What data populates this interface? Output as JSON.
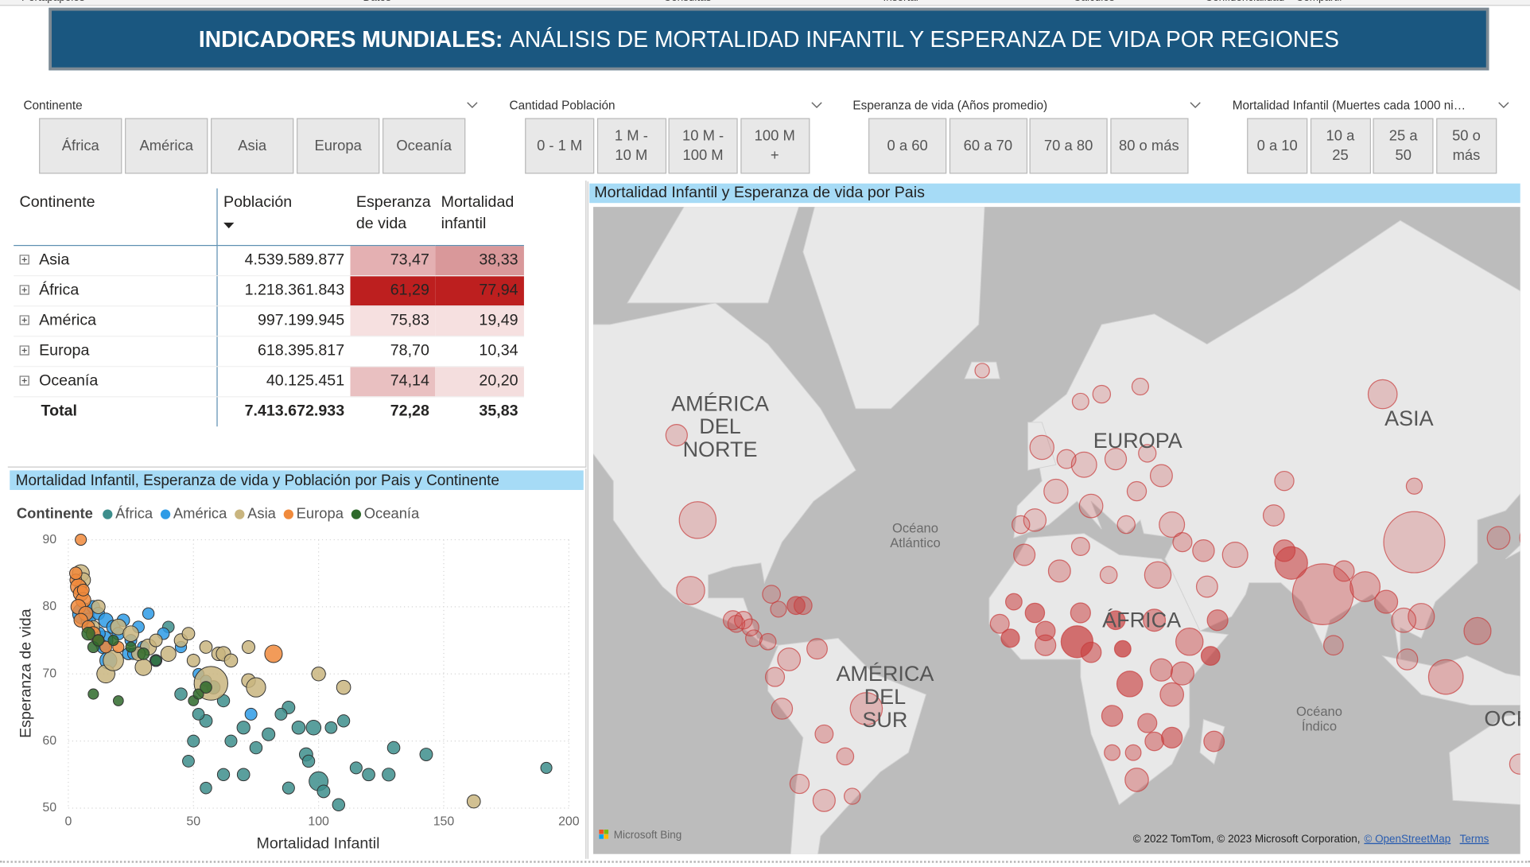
{
  "ribbon_groups": [
    "Portapapeles",
    "Datos",
    "Consultas",
    "Insertar",
    "Cálculos",
    "Confidencialidad",
    "Compartir"
  ],
  "header": {
    "title_bold": "INDICADORES MUNDIALES:",
    "title_rest": "ANÁLISIS DE MORTALIDAD INFANTIL Y ESPERANZA DE VIDA POR REGIONES"
  },
  "slicers": [
    {
      "title": "Continente",
      "options": [
        "África",
        "América",
        "Asia",
        "Europa",
        "Oceanía"
      ]
    },
    {
      "title": "Cantidad Población",
      "options": [
        "0 - 1 M",
        "1 M - 10 M",
        "10 M - 100 M",
        "100 M +"
      ]
    },
    {
      "title": "Esperanza de vida (Años promedio)",
      "options": [
        "0 a 60",
        "60 a 70",
        "70 a 80",
        "80 o más"
      ]
    },
    {
      "title": "Mortalidad Infantil (Muertes cada 1000 ni…",
      "options": [
        "0 a 10",
        "10 a 25",
        "25 a 50",
        "50 o más"
      ]
    }
  ],
  "table": {
    "headers": [
      "Continente",
      "Población",
      "Esperanza de vida",
      "Mortalidad infantil"
    ],
    "rows": [
      {
        "name": "Asia",
        "population": "4.539.589.877",
        "life": "73,47",
        "mort": "38,33",
        "life_color": "#e4b0b2",
        "mort_color": "#d9989a"
      },
      {
        "name": "África",
        "population": "1.218.361.843",
        "life": "61,29",
        "mort": "77,94",
        "life_color": "#bd1f1f",
        "mort_color": "#bd1f1f"
      },
      {
        "name": "América",
        "population": "997.199.945",
        "life": "75,83",
        "mort": "19,49",
        "life_color": "#f6e0e0",
        "mort_color": "#f6e0e0"
      },
      {
        "name": "Europa",
        "population": "618.395.817",
        "life": "78,70",
        "mort": "10,34",
        "life_color": "#ffffff",
        "mort_color": "#ffffff"
      },
      {
        "name": "Oceanía",
        "population": "40.125.451",
        "life": "74,14",
        "mort": "20,20",
        "life_color": "#e9c0c1",
        "mort_color": "#f4dede"
      }
    ],
    "total": {
      "name": "Total",
      "population": "7.413.672.933",
      "life": "72,28",
      "mort": "35,83"
    }
  },
  "scatter": {
    "type": "scatter",
    "title": "Mortalidad Infantil, Esperanza de vida y Población por Pais y Continente",
    "legend_title": "Continente",
    "x_label": "Mortalidad Infantil",
    "y_label": "Esperanza de vida",
    "xlim": [
      0,
      200
    ],
    "xticks": [
      0,
      50,
      100,
      150,
      200
    ],
    "ylim": [
      50,
      90
    ],
    "yticks": [
      50,
      60,
      70,
      80,
      90
    ],
    "grid": true,
    "series": [
      {
        "name": "África",
        "color": "#3d8e8c",
        "x": [
          58,
          62,
          55,
          50,
          48,
          55,
          62,
          70,
          70,
          75,
          80,
          88,
          92,
          98,
          100,
          95,
          102,
          108,
          115,
          120,
          128,
          130,
          143,
          191,
          110,
          105,
          40,
          65,
          88,
          96,
          85,
          45,
          52
        ],
        "y": [
          68,
          66,
          63,
          60,
          57,
          53,
          55,
          55,
          62,
          59,
          61,
          53,
          62,
          62,
          54,
          58,
          52.5,
          50.5,
          56,
          55,
          55,
          59,
          58,
          56,
          63,
          62,
          77,
          60,
          65,
          57,
          64,
          67,
          64
        ],
        "size": [
          30,
          15,
          20,
          12,
          10,
          8,
          14,
          18,
          25,
          16,
          22,
          12,
          28,
          60,
          206,
          31,
          20,
          16,
          12,
          18,
          24,
          17,
          20,
          5,
          14,
          10,
          8,
          12,
          20,
          15,
          11,
          16,
          9
        ]
      },
      {
        "name": "América",
        "color": "#2e9be6",
        "x": [
          6,
          8,
          10,
          12,
          14,
          15,
          18,
          20,
          22,
          25,
          28,
          30,
          32,
          14,
          24,
          35,
          45,
          38,
          52,
          55,
          73,
          16,
          12,
          26
        ],
        "y": [
          79,
          78,
          80,
          79,
          75,
          78,
          77,
          76,
          78,
          75,
          77,
          74,
          79,
          74,
          73,
          72,
          74,
          76,
          70,
          69,
          64,
          72,
          76,
          73
        ],
        "size": [
          331,
          45,
          20,
          19,
          212,
          51,
          33,
          18,
          18,
          11,
          10,
          12,
          7,
          28,
          11,
          12,
          6,
          10,
          4,
          3,
          11,
          129,
          38,
          7
        ]
      },
      {
        "name": "Asia",
        "color": "#c9b57f",
        "x": [
          5,
          6,
          5,
          12,
          20,
          25,
          32,
          40,
          45,
          50,
          55,
          60,
          62,
          65,
          72,
          72,
          75,
          100,
          110,
          162,
          15,
          30,
          57,
          10,
          18,
          28,
          35,
          48
        ],
        "y": [
          85,
          84,
          83,
          80,
          77,
          76,
          74,
          73,
          75,
          72,
          74,
          73,
          73,
          72,
          74,
          69,
          68,
          70,
          68,
          51,
          70,
          71,
          68.6,
          77,
          72,
          73,
          75,
          76
        ],
        "size": [
          126,
          51,
          10,
          35,
          84,
          84,
          97,
          70,
          30,
          20,
          18,
          34,
          54,
          29,
          21,
          39,
          220,
          40,
          44,
          30,
          165,
          110,
          1380,
          20,
          273,
          33,
          21,
          19
        ]
      },
      {
        "name": "Europa",
        "color": "#f08a3c",
        "x": [
          5,
          3,
          4,
          5,
          6,
          4,
          7,
          5,
          8,
          10,
          12,
          15,
          20,
          82,
          3,
          6
        ],
        "y": [
          90,
          84,
          83,
          82,
          81,
          80,
          79,
          78,
          77,
          76,
          75,
          74,
          74,
          73,
          85,
          82.5
        ],
        "size": [
          5,
          10,
          83,
          67,
          67,
          60,
          47,
          38,
          19,
          44,
          10,
          9,
          5,
          146,
          17,
          10
        ]
      },
      {
        "name": "Oceanía",
        "color": "#2f6a2c",
        "x": [
          8,
          10,
          12,
          18,
          30,
          35,
          10,
          20,
          50,
          52,
          55,
          25
        ],
        "y": [
          76,
          74,
          75,
          75,
          73,
          72,
          67,
          66,
          66,
          67,
          68,
          74
        ],
        "size": [
          25,
          5,
          4,
          1,
          9,
          1,
          1,
          0.3,
          0.5,
          0.8,
          9,
          0.9
        ]
      }
    ]
  },
  "map": {
    "title": "Mortalidad Infantil y Esperanza de vida por Pais",
    "labels": [
      {
        "lines": [
          "AMÉRICA",
          "DEL",
          "NORTE"
        ]
      },
      {
        "lines": [
          "AMÉRICA",
          "DEL",
          "SUR"
        ]
      },
      {
        "lines": [
          "EUROPA"
        ]
      },
      {
        "lines": [
          "ÁFRICA"
        ]
      },
      {
        "lines": [
          "ASIA"
        ]
      },
      {
        "lines": [
          "OCE"
        ]
      },
      {
        "lines": [
          "Océano",
          "Atlántico"
        ]
      },
      {
        "lines": [
          "Océano",
          "Índico"
        ]
      }
    ],
    "attribution": {
      "logo": "Microsoft Bing",
      "credits": "© 2022 TomTom, © 2023 Microsoft Corporation,",
      "osm": "© OpenStreetMap",
      "terms": "Terms"
    },
    "bubble_color": "#c83c3c",
    "bubbles": {
      "lon": [
        8,
        40,
        23,
        31,
        35,
        25,
        38,
        32,
        3,
        30,
        -7,
        18,
        -1,
        35,
        47,
        12,
        9,
        -4,
        -1,
        -14,
        19,
        -11,
        28,
        30,
        46,
        18,
        24,
        17,
        9,
        -10,
        21,
        -100,
        -102,
        -52,
        -74,
        -64,
        -76,
        -66,
        -71,
        -78,
        -90,
        -79,
        -72,
        -64,
        -106,
        -87,
        -58,
        -85,
        -80,
        -56,
        -70,
        -77,
        -84,
        -89,
        104,
        78,
        113,
        69,
        90,
        138,
        122,
        106,
        35,
        53,
        101,
        96,
        44,
        67,
        45,
        64,
        48,
        102,
        84,
        81,
        67,
        38,
        104,
        128,
        95,
        10,
        -2,
        2,
        12,
        -4,
        19,
        32,
        25,
        5,
        15,
        9,
        26,
        -19,
        -8,
        22,
        28,
        134,
        145
      ],
      "lat": [
        9,
        9,
        -3,
        27,
        -6,
        -29,
        0,
        1,
        28,
        15,
        32,
        -12,
        8,
        -18,
        -19,
        6,
        17,
        17,
        12,
        14,
        15,
        10,
        -14,
        -19,
        5,
        -22,
        -22,
        27,
        34,
        20,
        7,
        40,
        23,
        -10,
        4,
        -34,
        -10,
        7,
        -30,
        -1,
        15,
        22,
        19,
        -17,
        56,
        15,
        -23,
        13,
        9,
        -33,
        19,
        18,
        10,
        14,
        35,
        22,
        -1,
        30,
        24,
        36,
        12,
        16,
        39,
        32,
        15,
        20,
        33,
        33,
        24,
        41,
        15,
        4,
        28,
        8,
        48,
        35,
        47,
        36,
        62,
        51,
        54,
        46,
        43,
        40,
        52,
        49,
        46,
        52,
        62,
        61,
        63,
        65,
        39,
        39,
        53,
        -25,
        -6
      ],
      "population": [
        206,
        115,
        90,
        102,
        60,
        59,
        54,
        46,
        44,
        44,
        37,
        33,
        31,
        31,
        28,
        27,
        24,
        20,
        21,
        17,
        16,
        13,
        18,
        15,
        16,
        2.5,
        2.4,
        7,
        12,
        4.6,
        4.8,
        331,
        129,
        212,
        51,
        45,
        33,
        28,
        19,
        18,
        18,
        11,
        11,
        12,
        38,
        10,
        7,
        7,
        4.3,
        3.5,
        11,
        3,
        5,
        6.5,
        1400,
        1380,
        273,
        220,
        165,
        126,
        110,
        97,
        84,
        84,
        70,
        54,
        40,
        39,
        35,
        34,
        30,
        32,
        29,
        21,
        19,
        18,
        3.3,
        51,
        146,
        83,
        67,
        67,
        60,
        47,
        38,
        44,
        19,
        17,
        10,
        5,
        5.5,
        0.36,
        10,
        10,
        9.4,
        25,
        9
      ],
      "mortality": [
        74,
        35,
        63,
        17,
        35,
        26,
        31,
        33,
        20,
        41,
        17,
        48,
        33,
        55,
        38,
        50,
        46,
        60,
        50,
        30,
        70,
        66,
        40,
        37,
        70,
        29,
        30,
        11,
        15,
        50,
        78,
        5.5,
        12,
        13,
        12,
        8,
        11,
        21,
        6,
        12,
        20,
        4,
        47,
        21,
        4.4,
        15,
        17,
        15,
        13,
        6,
        28,
        12,
        7,
        11,
        6,
        27,
        20,
        55,
        24,
        1.8,
        21,
        16,
        8,
        11,
        7,
        35,
        21,
        46,
        6,
        14,
        45,
        7,
        24,
        6,
        9,
        18,
        14,
        2.5,
        5,
        3,
        4,
        3.5,
        2.6,
        2.6,
        3.8,
        7,
        6,
        3.5,
        2,
        2,
        1.8,
        1.5,
        2.9,
        3.5,
        2.5,
        3,
        37
      ]
    }
  }
}
